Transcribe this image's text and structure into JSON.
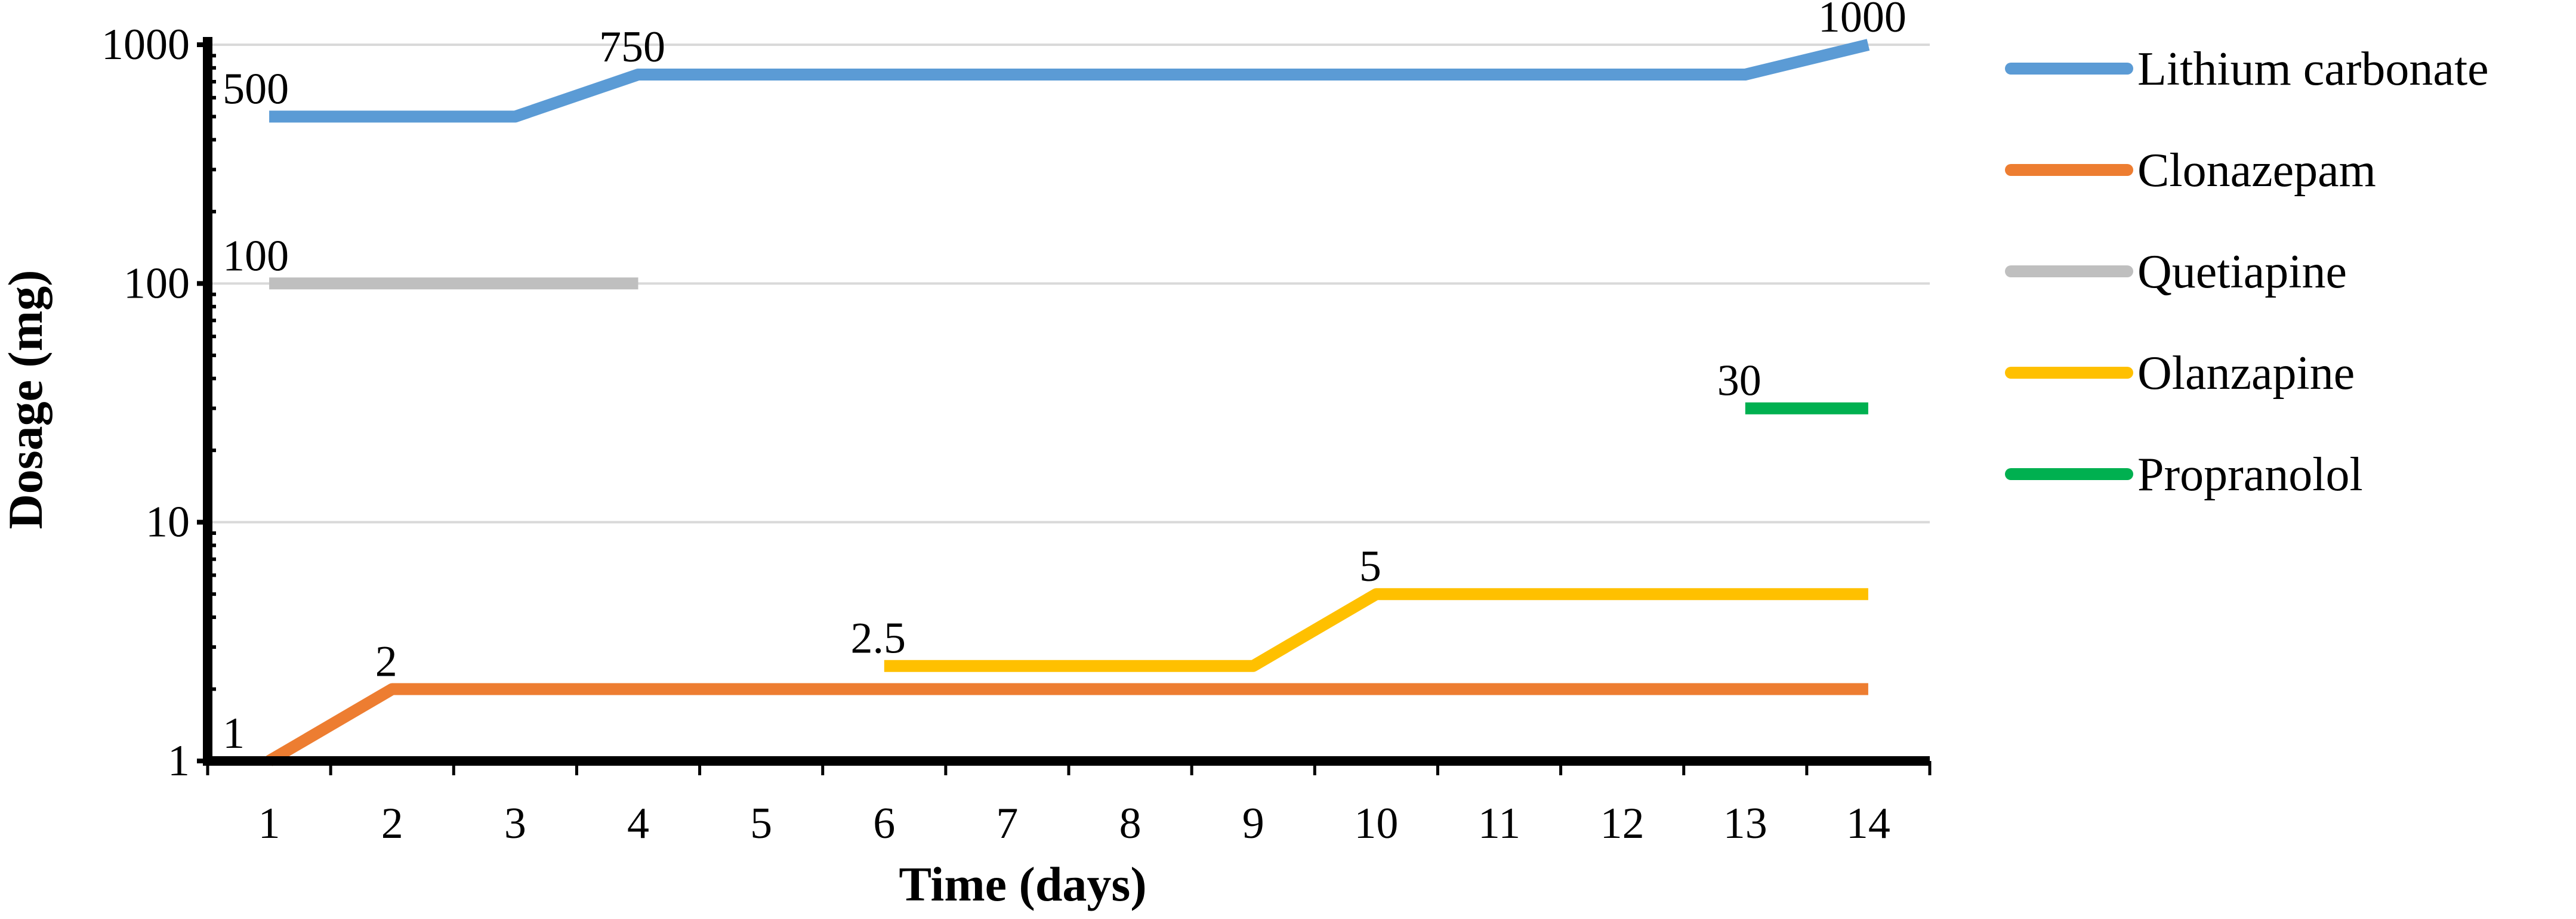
{
  "chart_data": {
    "type": "line",
    "title": "",
    "xlabel": "Time (days)",
    "ylabel": "Dosage (mg)",
    "yscale": "log",
    "ylim": [
      1,
      1000
    ],
    "y_ticks": [
      1,
      10,
      100,
      1000
    ],
    "y_tick_labels": [
      "1",
      "10",
      "100",
      "1000"
    ],
    "x_categories": [
      "1",
      "2",
      "3",
      "4",
      "5",
      "6",
      "7",
      "8",
      "9",
      "10",
      "11",
      "12",
      "13",
      "14"
    ],
    "grid": "horizontal",
    "legend_position": "right",
    "series": [
      {
        "name": "Lithium carbonate",
        "color": "#5B9BD5",
        "points": [
          [
            1,
            500
          ],
          [
            2,
            500
          ],
          [
            3,
            500
          ],
          [
            4,
            750
          ],
          [
            5,
            750
          ],
          [
            6,
            750
          ],
          [
            7,
            750
          ],
          [
            8,
            750
          ],
          [
            9,
            750
          ],
          [
            10,
            750
          ],
          [
            11,
            750
          ],
          [
            12,
            750
          ],
          [
            13,
            750
          ],
          [
            14,
            1000
          ]
        ],
        "labels": [
          {
            "x": 1,
            "y": 500,
            "text": "500"
          },
          {
            "x": 4,
            "y": 750,
            "text": "750"
          },
          {
            "x": 14,
            "y": 1000,
            "text": "1000"
          }
        ]
      },
      {
        "name": "Clonazepam",
        "color": "#ED7D31",
        "points": [
          [
            1,
            1
          ],
          [
            2,
            2
          ],
          [
            3,
            2
          ],
          [
            4,
            2
          ],
          [
            5,
            2
          ],
          [
            6,
            2
          ],
          [
            7,
            2
          ],
          [
            8,
            2
          ],
          [
            9,
            2
          ],
          [
            10,
            2
          ],
          [
            11,
            2
          ],
          [
            12,
            2
          ],
          [
            13,
            2
          ],
          [
            14,
            2
          ]
        ],
        "labels": [
          {
            "x": 1,
            "y": 1,
            "text": "1"
          },
          {
            "x": 2,
            "y": 2,
            "text": "2"
          }
        ]
      },
      {
        "name": "Quetiapine",
        "color": "#BFBFBF",
        "points": [
          [
            1,
            100
          ],
          [
            2,
            100
          ],
          [
            3,
            100
          ],
          [
            4,
            100
          ]
        ],
        "labels": [
          {
            "x": 1,
            "y": 100,
            "text": "100"
          }
        ]
      },
      {
        "name": "Olanzapine",
        "color": "#FFC000",
        "points": [
          [
            6,
            2.5
          ],
          [
            7,
            2.5
          ],
          [
            8,
            2.5
          ],
          [
            9,
            2.5
          ],
          [
            10,
            5
          ],
          [
            11,
            5
          ],
          [
            12,
            5
          ],
          [
            13,
            5
          ],
          [
            14,
            5
          ]
        ],
        "labels": [
          {
            "x": 6,
            "y": 2.5,
            "text": "2.5"
          },
          {
            "x": 10,
            "y": 5,
            "text": "5"
          }
        ]
      },
      {
        "name": "Propranolol",
        "color": "#00B050",
        "points": [
          [
            13,
            30
          ],
          [
            14,
            30
          ]
        ],
        "labels": [
          {
            "x": 13,
            "y": 30,
            "text": "30"
          }
        ]
      }
    ]
  }
}
